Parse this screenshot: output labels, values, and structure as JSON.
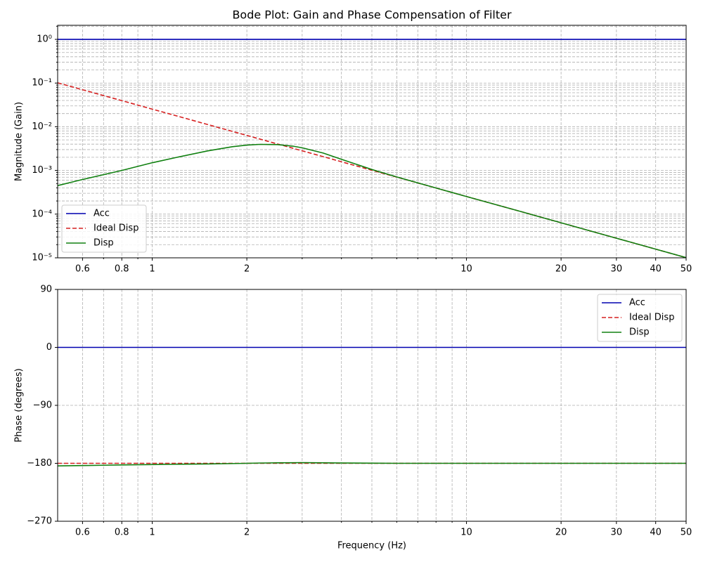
{
  "chart_data": [
    {
      "type": "line",
      "title": "Bode Plot: Gain and Phase Compensation of Filter",
      "y_label": "Magnitude (Gain)",
      "x_scale": "log",
      "y_scale": "log",
      "grid": true,
      "legend": "lower left",
      "xlim": [
        0.5,
        50
      ],
      "ylim": [
        1e-05,
        2.1
      ],
      "xticks": [
        0.6,
        0.8,
        1,
        2,
        10,
        20,
        30,
        40,
        50
      ],
      "xminor_ticks": [
        0.7,
        0.9,
        3,
        4,
        5,
        6,
        7,
        8,
        9
      ],
      "yticks": [
        {
          "value": 1e-05,
          "label": "10⁻⁵"
        },
        {
          "value": 0.0001,
          "label": "10⁻⁴"
        },
        {
          "value": 0.001,
          "label": "10⁻³"
        },
        {
          "value": 0.01,
          "label": "10⁻²"
        },
        {
          "value": 0.1,
          "label": "10⁻¹"
        },
        {
          "value": 1,
          "label": "10⁰"
        }
      ],
      "yminor_ticks": [
        2e-05,
        3e-05,
        4e-05,
        5e-05,
        6e-05,
        7e-05,
        8e-05,
        9e-05,
        0.0002,
        0.0003,
        0.0004,
        0.0005,
        0.0006,
        0.0007,
        0.0008,
        0.0009,
        0.002,
        0.003,
        0.004,
        0.005,
        0.006,
        0.007,
        0.008,
        0.009,
        0.02,
        0.03,
        0.04,
        0.05,
        0.06,
        0.07,
        0.08,
        0.09,
        0.2,
        0.3,
        0.4,
        0.5,
        0.6,
        0.7,
        0.8,
        0.9,
        2
      ],
      "x": [
        0.5,
        0.6,
        0.7,
        0.8,
        1,
        1.2,
        1.5,
        1.8,
        2,
        2.2,
        2.5,
        2.8,
        3,
        3.5,
        4,
        5,
        6,
        8,
        10,
        15,
        20,
        30,
        40,
        50
      ],
      "series": [
        {
          "name": "Acc",
          "color": "#0000b0",
          "linestyle": "solid",
          "values": [
            1,
            1,
            1,
            1,
            1,
            1,
            1,
            1,
            1,
            1,
            1,
            1,
            1,
            1,
            1,
            1,
            1,
            1,
            1,
            1,
            1,
            1,
            1,
            1
          ]
        },
        {
          "name": "Ideal Disp",
          "color": "#d62020",
          "linestyle": "dashed",
          "values": [
            0.1013,
            0.0704,
            0.0517,
            0.0396,
            0.0253,
            0.0176,
            0.01126,
            0.00782,
            0.00633,
            0.00523,
            0.00405,
            0.00323,
            0.00281,
            0.00207,
            0.00158,
            0.00101,
            0.000704,
            0.000396,
            0.000253,
            0.000113,
            6.33e-05,
            2.81e-05,
            1.58e-05,
            1.01e-05
          ]
        },
        {
          "name": "Disp",
          "color": "#108010",
          "linestyle": "solid",
          "values": [
            0.00045,
            0.00062,
            0.0008,
            0.001,
            0.0015,
            0.002,
            0.0028,
            0.0035,
            0.0038,
            0.00395,
            0.0039,
            0.0036,
            0.0033,
            0.0025,
            0.0018,
            0.00105,
            0.00071,
            0.000396,
            0.000253,
            0.000113,
            6.33e-05,
            2.81e-05,
            1.58e-05,
            1.01e-05
          ]
        }
      ]
    },
    {
      "type": "line",
      "x_label": "Frequency (Hz)",
      "y_label": "Phase (degrees)",
      "x_scale": "log",
      "y_scale": "linear",
      "grid": true,
      "legend": "upper right",
      "xlim": [
        0.5,
        50
      ],
      "ylim": [
        -270,
        90
      ],
      "xticks": [
        0.6,
        0.8,
        1,
        2,
        10,
        20,
        30,
        40,
        50
      ],
      "xminor_ticks": [
        0.7,
        0.9,
        3,
        4,
        5,
        6,
        7,
        8,
        9
      ],
      "yticks": [
        {
          "value": -270,
          "label": "−270"
        },
        {
          "value": -180,
          "label": "−180"
        },
        {
          "value": -90,
          "label": "−90"
        },
        0,
        90
      ],
      "x": [
        0.5,
        0.6,
        0.7,
        0.8,
        1,
        1.2,
        1.5,
        1.8,
        2,
        2.2,
        2.5,
        2.8,
        3,
        3.5,
        4,
        5,
        6,
        8,
        10,
        15,
        20,
        30,
        40,
        50
      ],
      "series": [
        {
          "name": "Acc",
          "color": "#0000b0",
          "linestyle": "solid",
          "values": [
            0,
            0,
            0,
            0,
            0,
            0,
            0,
            0,
            0,
            0,
            0,
            0,
            0,
            0,
            0,
            0,
            0,
            0,
            0,
            0,
            0,
            0,
            0,
            0
          ]
        },
        {
          "name": "Ideal Disp",
          "color": "#d62020",
          "linestyle": "dashed",
          "values": [
            -180,
            -180,
            -180,
            -180,
            -180,
            -180,
            -180,
            -180,
            -180,
            -180,
            -180,
            -180,
            -180,
            -180,
            -180,
            -180,
            -180,
            -180,
            -180,
            -180,
            -180,
            -180,
            -180,
            -180
          ]
        },
        {
          "name": "Disp",
          "color": "#108010",
          "linestyle": "solid",
          "values": [
            -184,
            -183.5,
            -183,
            -182.5,
            -182,
            -181.5,
            -181,
            -180.4,
            -180,
            -179.6,
            -179.3,
            -179.1,
            -179,
            -179.2,
            -179.5,
            -179.8,
            -180,
            -180,
            -180,
            -180,
            -180,
            -180,
            -180,
            -180
          ]
        }
      ]
    }
  ]
}
